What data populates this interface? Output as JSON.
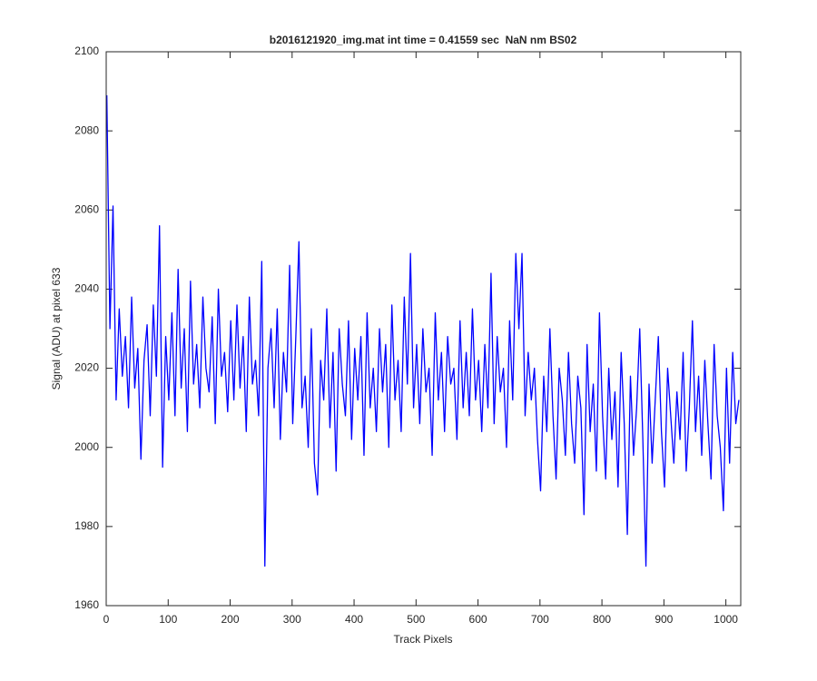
{
  "chart_data": {
    "type": "line",
    "title": "b2016121920_img.mat int time = 0.41559 sec  NaN nm BS02",
    "x_label": "Track Pixels",
    "y_label": "Signal (ADU) at pixel 633",
    "color": "#0000ff",
    "xlim": [
      0,
      1024
    ],
    "xticks": [
      0,
      100,
      200,
      300,
      400,
      500,
      600,
      700,
      800,
      900,
      1000
    ],
    "ylim": [
      1960,
      2100
    ],
    "yticks": [
      1960,
      1980,
      2000,
      2020,
      2040,
      2060,
      2080,
      2100
    ],
    "grid": false,
    "x": [
      1,
      6,
      11,
      16,
      21,
      26,
      31,
      36,
      41,
      46,
      51,
      56,
      61,
      66,
      71,
      76,
      81,
      86,
      91,
      96,
      101,
      106,
      111,
      116,
      121,
      126,
      131,
      136,
      141,
      146,
      151,
      156,
      161,
      166,
      171,
      176,
      181,
      186,
      191,
      196,
      201,
      206,
      211,
      216,
      221,
      226,
      231,
      236,
      241,
      246,
      251,
      256,
      261,
      266,
      271,
      276,
      281,
      286,
      291,
      296,
      301,
      306,
      311,
      316,
      321,
      326,
      331,
      336,
      341,
      346,
      351,
      356,
      361,
      366,
      371,
      376,
      381,
      386,
      391,
      396,
      401,
      406,
      411,
      416,
      421,
      426,
      431,
      436,
      441,
      446,
      451,
      456,
      461,
      466,
      471,
      476,
      481,
      486,
      491,
      496,
      501,
      506,
      511,
      516,
      521,
      526,
      531,
      536,
      541,
      546,
      551,
      556,
      561,
      566,
      571,
      576,
      581,
      586,
      591,
      596,
      601,
      606,
      611,
      616,
      621,
      626,
      631,
      636,
      641,
      646,
      651,
      656,
      661,
      666,
      671,
      676,
      681,
      686,
      691,
      696,
      701,
      706,
      711,
      716,
      721,
      726,
      731,
      736,
      741,
      746,
      751,
      756,
      761,
      766,
      771,
      776,
      781,
      786,
      791,
      796,
      801,
      806,
      811,
      816,
      821,
      826,
      831,
      836,
      841,
      846,
      851,
      856,
      861,
      866,
      871,
      876,
      881,
      886,
      891,
      896,
      901,
      906,
      911,
      916,
      921,
      926,
      931,
      936,
      941,
      946,
      951,
      956,
      961,
      966,
      971,
      976,
      981,
      986,
      991,
      996,
      1001,
      1006,
      1011,
      1016,
      1021
    ],
    "values": [
      2089,
      2030,
      2061,
      2012,
      2035,
      2018,
      2028,
      2010,
      2038,
      2015,
      2025,
      1997,
      2022,
      2031,
      2008,
      2036,
      2018,
      2056,
      1995,
      2028,
      2012,
      2034,
      2008,
      2045,
      2015,
      2030,
      2004,
      2042,
      2016,
      2026,
      2010,
      2038,
      2020,
      2014,
      2033,
      2006,
      2040,
      2018,
      2024,
      2009,
      2032,
      2012,
      2036,
      2015,
      2028,
      2004,
      2038,
      2016,
      2022,
      2008,
      2047,
      1970,
      2020,
      2030,
      2010,
      2035,
      2002,
      2024,
      2014,
      2046,
      2006,
      2028,
      2052,
      2010,
      2018,
      2000,
      2030,
      1996,
      1988,
      2022,
      2012,
      2035,
      2005,
      2024,
      1994,
      2030,
      2016,
      2008,
      2032,
      2002,
      2025,
      2012,
      2028,
      1998,
      2034,
      2010,
      2020,
      2004,
      2030,
      2014,
      2026,
      2000,
      2036,
      2012,
      2022,
      2004,
      2038,
      2016,
      2049,
      2010,
      2026,
      2006,
      2030,
      2014,
      2020,
      1998,
      2034,
      2012,
      2024,
      2004,
      2028,
      2016,
      2020,
      2002,
      2032,
      2010,
      2024,
      2008,
      2035,
      2012,
      2022,
      2004,
      2026,
      2010,
      2044,
      2006,
      2028,
      2014,
      2020,
      2000,
      2032,
      2012,
      2049,
      2030,
      2049,
      2008,
      2024,
      2012,
      2020,
      2002,
      1989,
      2018,
      2004,
      2030,
      2008,
      1992,
      2020,
      2012,
      1998,
      2024,
      2006,
      1996,
      2018,
      2010,
      1983,
      2026,
      2004,
      2016,
      1994,
      2034,
      2008,
      1992,
      2020,
      2002,
      2014,
      1990,
      2024,
      2006,
      1978,
      2018,
      1998,
      2010,
      2030,
      2002,
      1970,
      2016,
      1996,
      2012,
      2028,
      2004,
      1990,
      2020,
      2008,
      1996,
      2014,
      2002,
      2024,
      1994,
      2010,
      2032,
      2004,
      2018,
      1998,
      2022,
      2006,
      1992,
      2026,
      2008,
      2000,
      1984,
      2020,
      1996,
      2024,
      2006,
      2012
    ]
  }
}
